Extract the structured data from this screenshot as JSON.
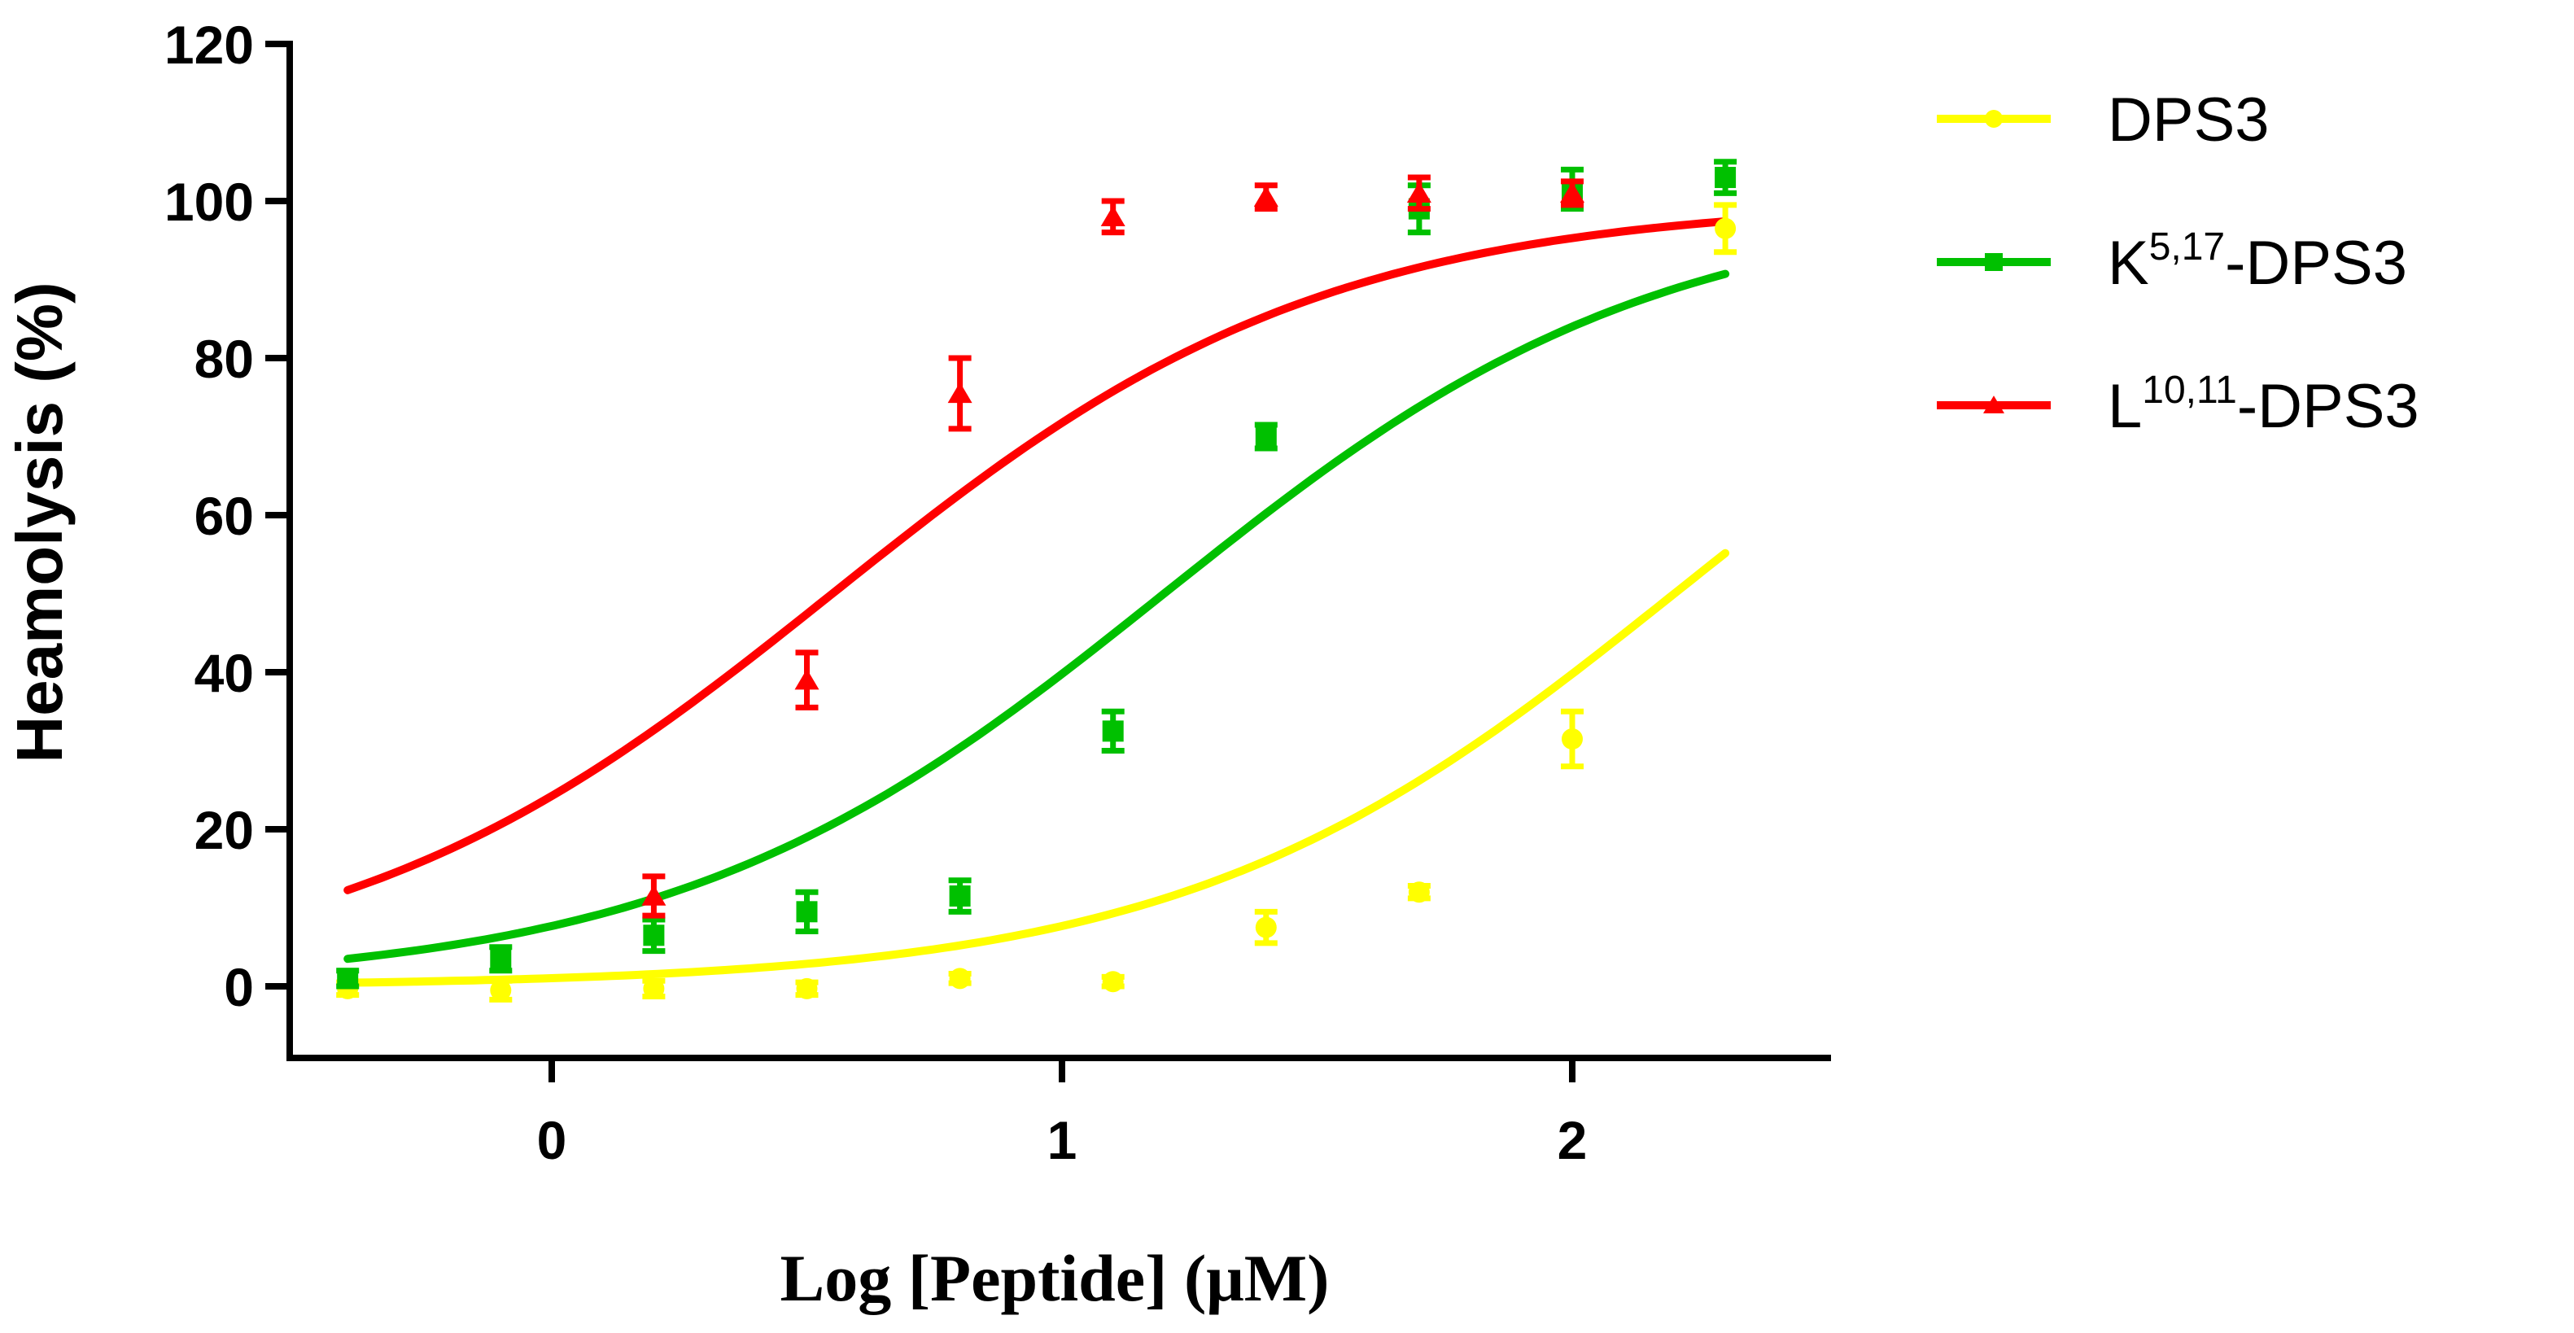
{
  "chart_data": {
    "type": "scatter",
    "title": "",
    "xlabel": "Log [Peptide] (μM)",
    "ylabel": "Heamolysis (%)",
    "xlim": [
      -0.5,
      2.5
    ],
    "ylim": [
      -10,
      120
    ],
    "x_ticks": [
      "0",
      "1",
      "2"
    ],
    "x_tick_values": [
      0,
      1,
      2
    ],
    "y_ticks": [
      "0",
      "20",
      "40",
      "60",
      "80",
      "100",
      "120"
    ],
    "y_tick_values": [
      0,
      20,
      40,
      60,
      80,
      100,
      120
    ],
    "legend_position": "right",
    "x": [
      -0.4,
      -0.1,
      0.2,
      0.5,
      0.8,
      1.1,
      1.4,
      1.7,
      2.0,
      2.3
    ],
    "series": [
      {
        "name": "DPS3",
        "legend_main": "DPS3",
        "legend_sup": "",
        "legend_suffix": "",
        "color": "#ffff00",
        "marker": "circle",
        "values": [
          -0.3,
          -0.5,
          -0.3,
          -0.3,
          1.0,
          0.6,
          7.5,
          12.0,
          31.5,
          96.5
        ],
        "errors": [
          0.8,
          1.2,
          1.0,
          0.8,
          0.6,
          0.6,
          2.0,
          0.8,
          3.5,
          3.0
        ],
        "fit": {
          "bottom": 0,
          "top": 100,
          "logEC50": 2.2,
          "hill": 0.9
        }
      },
      {
        "name": "K5,17-DPS3",
        "legend_main": "K",
        "legend_sup": "5,17",
        "legend_suffix": "-DPS3",
        "color": "#00c000",
        "marker": "square",
        "values": [
          1.0,
          3.5,
          6.5,
          9.5,
          11.5,
          32.5,
          70.0,
          99.0,
          101.5,
          103.0
        ],
        "errors": [
          1.0,
          1.5,
          2.0,
          2.5,
          2.0,
          2.5,
          1.5,
          3.0,
          2.5,
          2.0
        ],
        "fit": {
          "bottom": 0,
          "top": 100,
          "logEC50": 1.2,
          "hill": 0.9
        }
      },
      {
        "name": "L10,11-DPS3",
        "legend_main": "L",
        "legend_sup": "10,11",
        "legend_suffix": "-DPS3",
        "color": "#ff0000",
        "marker": "triangle",
        "values": [
          null,
          null,
          11.5,
          39.0,
          75.5,
          98.0,
          100.5,
          101.0,
          101.0,
          null
        ],
        "errors": [
          0,
          0,
          2.5,
          3.5,
          4.5,
          2.0,
          1.5,
          2.0,
          1.5,
          0
        ],
        "fit": {
          "bottom": 0,
          "top": 100,
          "logEC50": 0.55,
          "hill": 0.9
        }
      }
    ]
  }
}
